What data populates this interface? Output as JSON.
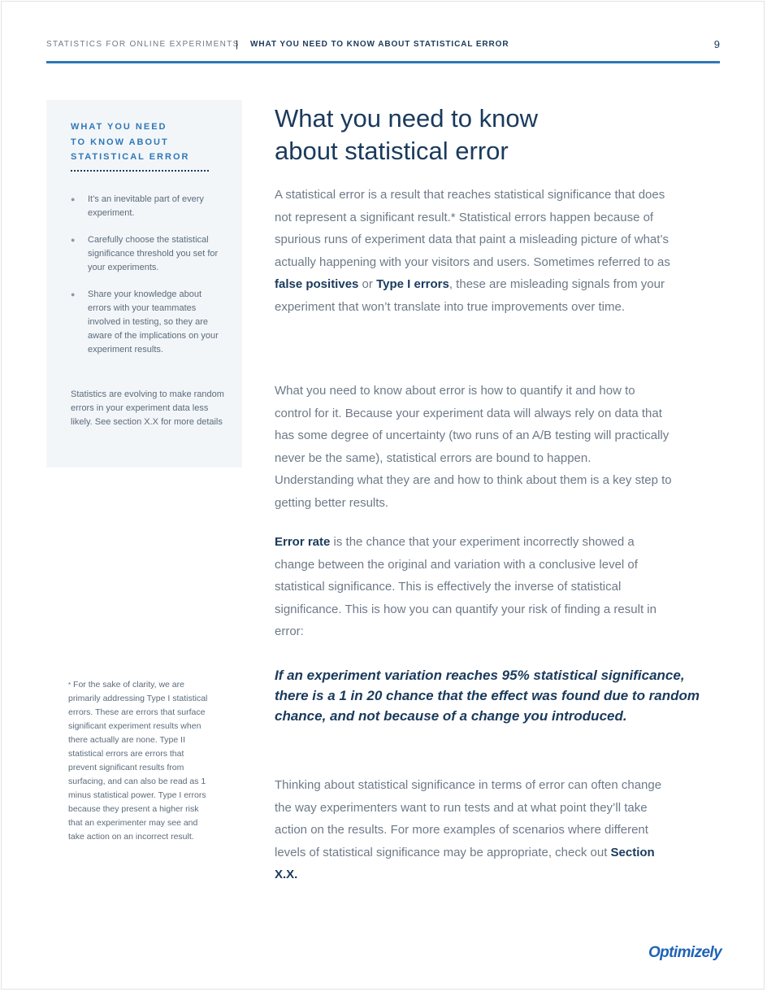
{
  "header": {
    "left": "STATISTICS FOR ONLINE EXPERIMENTS",
    "separator": "|",
    "right": "WHAT YOU NEED TO KNOW ABOUT STATISTICAL ERROR",
    "page_number": "9"
  },
  "sidebar": {
    "title_line1": "WHAT YOU NEED",
    "title_line2": "TO KNOW ABOUT",
    "title_line3": "STATISTICAL ERROR",
    "bullets": [
      "It’s an inevitable part of every experiment.",
      "Carefully choose the statistical significance threshold you set for your experiments.",
      "Share your knowledge about errors with your teammates involved in testing, so they are aware of the implications on your experiment results."
    ],
    "note": "Statistics are evolving to make random errors in your experiment data less likely. See section X.X for more details"
  },
  "footnote": {
    "marker": "*",
    "text": "For the sake of clarity, we are primarily addressing Type I statistical errors. These are errors that surface significant experiment results when there actually are none. Type II statistical errors are errors that prevent significant results from surfacing, and can also be read as 1 minus statistical power. Type I errors because they present a higher risk that an experimenter may see and take action on an incorrect result."
  },
  "main": {
    "title_line1": "What you need to know",
    "title_line2": "about statistical error",
    "p1_a": "A statistical error is a result that reaches statistical significance that does not represent a significant result.* Statistical errors happen because of spurious runs of experiment data that paint a misleading picture of what’s actually happening with your visitors and users. Sometimes referred to as ",
    "p1_b": "false positives",
    "p1_c": " or ",
    "p1_d": "Type I errors",
    "p1_e": ", these are misleading signals from your experiment that won’t translate into true improvements over time.",
    "p2": "What you need to know about error is how to quantify it and how to control for it. Because your experiment data will always rely on data that has some degree of uncertainty (two runs of an A/B testing will practically never be the same), statistical errors are bound to happen. Understanding what they are and how to think about them is a key step to getting better results.",
    "p3_a": "Error rate",
    "p3_b": " is the chance that your experiment incorrectly showed a change between the original and variation with a conclusive level of statistical significance. This is effectively the inverse of statistical significance. This is how you can quantify your risk of finding a result in error:",
    "quote": "If an experiment variation reaches 95% statistical significance, there is a 1 in 20 chance that the effect was found due to random chance, and not because of a change you introduced.",
    "p4_a": "Thinking about statistical significance in terms of error can often change the way experimenters want to run tests and at what point they’ll take action on the results. For more examples of scenarios where different levels of statistical significance may be appropriate, check out ",
    "p4_b": "Section X.X."
  },
  "logo": "Optimizely"
}
